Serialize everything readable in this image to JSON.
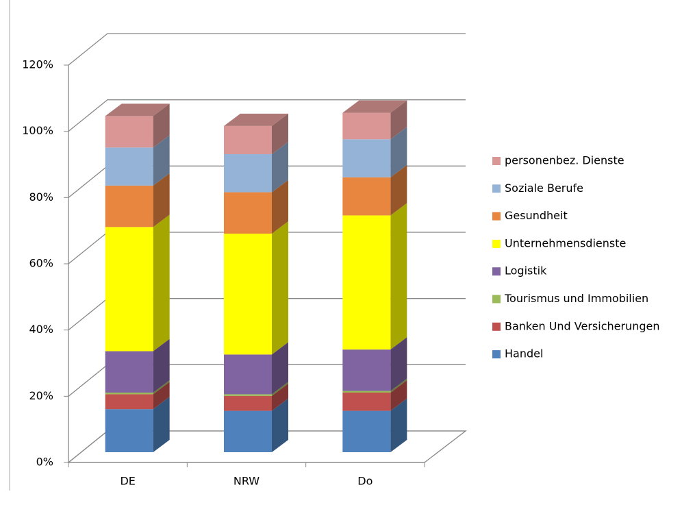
{
  "chart_data": {
    "type": "bar3d_stacked",
    "categories": [
      "DE",
      "NRW",
      "Do"
    ],
    "series": [
      {
        "name": "Handel",
        "color": "#4f81bd",
        "values": [
          13,
          12.5,
          12.5
        ]
      },
      {
        "name": "Banken Und Versicherungen",
        "color": "#c0504d",
        "values": [
          4.5,
          4.5,
          5.5
        ]
      },
      {
        "name": "Tourismus und Immobilien",
        "color": "#9bbb59",
        "values": [
          0.5,
          0.5,
          0.5
        ]
      },
      {
        "name": "Logistik",
        "color": "#8064a2",
        "values": [
          12.5,
          12,
          12.5
        ]
      },
      {
        "name": "Unternehmensdienste",
        "color": "#ffff00",
        "values": [
          37.5,
          36.5,
          40.5
        ]
      },
      {
        "name": "Gesundheit",
        "color": "#e8853f",
        "values": [
          12.5,
          12.5,
          11.5
        ]
      },
      {
        "name": "Soziale Berufe",
        "color": "#95b3d7",
        "values": [
          11.5,
          11.5,
          11.5
        ]
      },
      {
        "name": "personenbez. Dienste",
        "color": "#d99694",
        "values": [
          9.5,
          8.5,
          8
        ]
      }
    ],
    "ylim": [
      0,
      120
    ],
    "yticks": [
      {
        "value": 0,
        "label": "0%"
      },
      {
        "value": 20,
        "label": "20%"
      },
      {
        "value": 40,
        "label": "40%"
      },
      {
        "value": 60,
        "label": "60%"
      },
      {
        "value": 80,
        "label": "80%"
      },
      {
        "value": 100,
        "label": "100%"
      },
      {
        "value": 120,
        "label": "120%"
      }
    ],
    "grid": true,
    "legend": "right"
  }
}
